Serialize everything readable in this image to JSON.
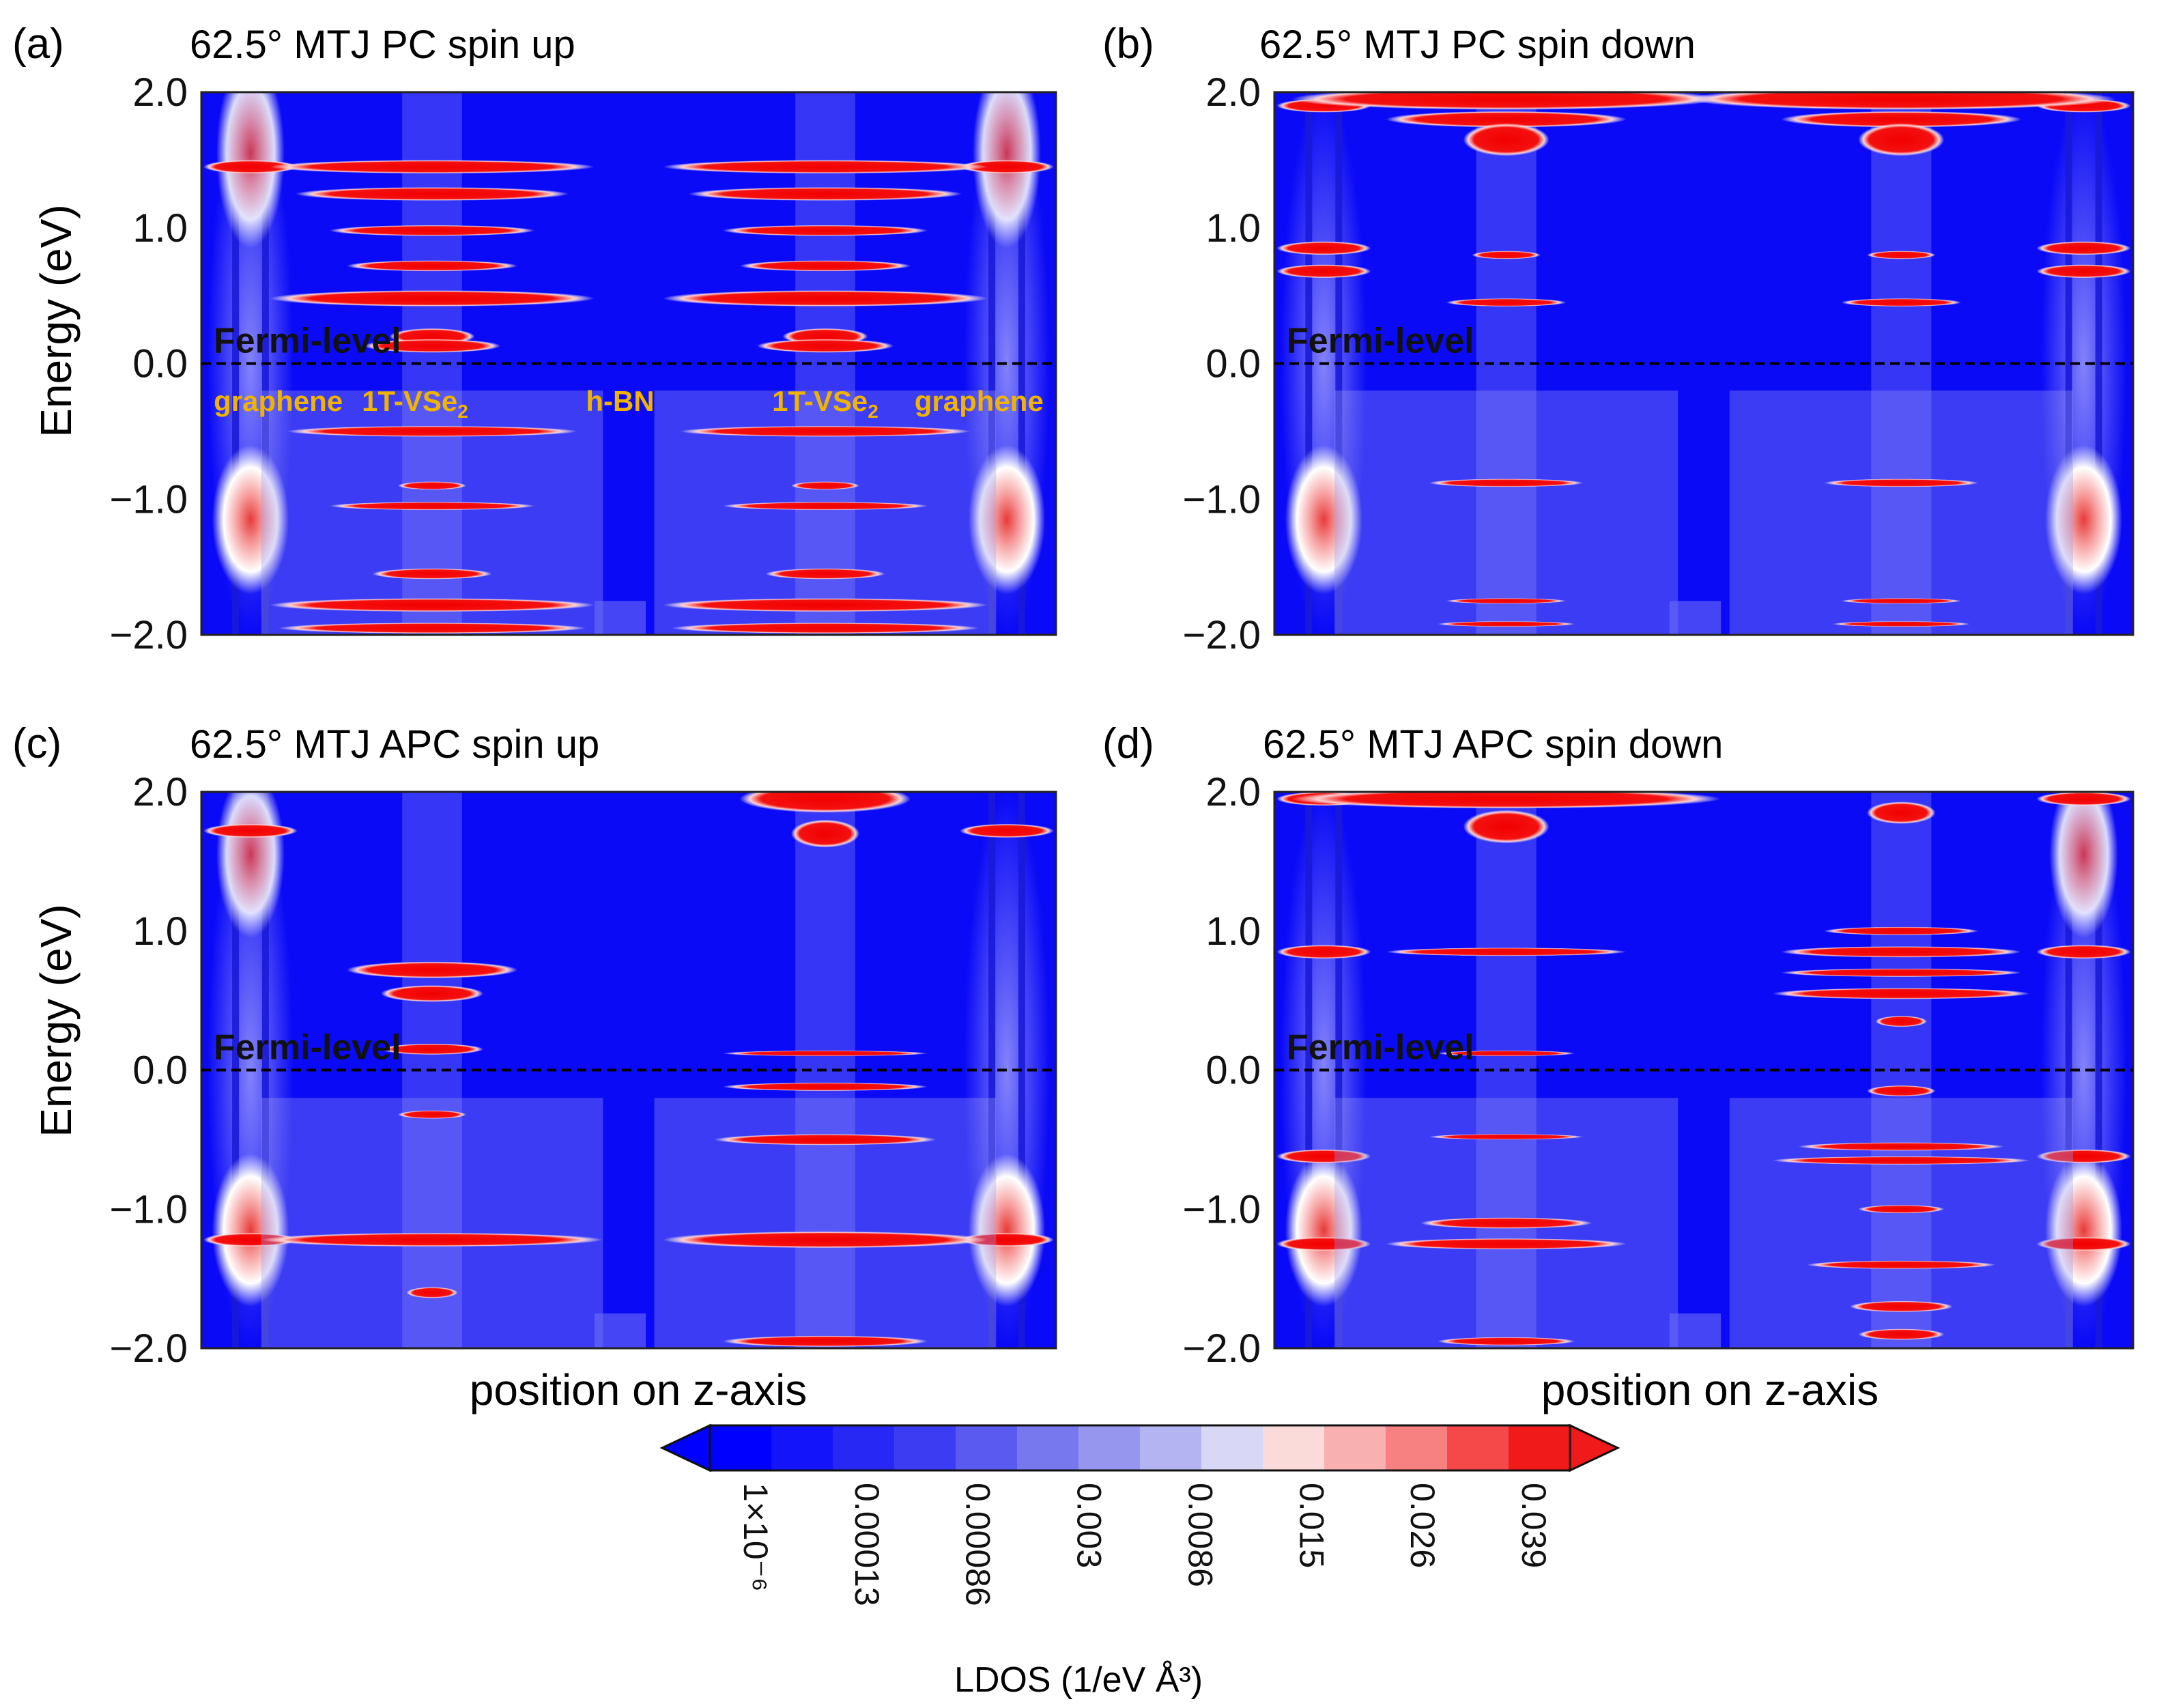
{
  "chart_data": {
    "type": "heatmap",
    "colorbar": {
      "label": "LDOS (1/eV Å³)",
      "ticks": [
        "1×10⁻⁶",
        "0.00013",
        "0.00086",
        "0.003",
        "0.0086",
        "0.015",
        "0.026",
        "0.039"
      ],
      "colors": [
        "#0000ff",
        "#1414fa",
        "#2828f5",
        "#3c3cf3",
        "#5a5af0",
        "#7878ee",
        "#9696ef",
        "#b4b4f2",
        "#d8d8f6",
        "#fbdada",
        "#f9b0b0",
        "#f78080",
        "#f54848",
        "#f01a1a"
      ],
      "extend": "both"
    },
    "fermi_label": "Fermi-level",
    "xlabel": "position on z-axis",
    "ylabel": "Energy (eV)",
    "ylim": [
      -2.0,
      2.0
    ],
    "yticks": [
      "2.0",
      "1.0",
      "0.0",
      "−1.0",
      "−2.0"
    ],
    "layer_labels": [
      "graphene",
      "1T-VSe",
      "h-BN",
      "1T-VSe",
      "graphene"
    ],
    "layer_subscript": "2",
    "panels": [
      {
        "id": "a",
        "label": "(a)",
        "title": "62.5° MTJ PC spin up",
        "vse2_left": [
          {
            "e": 1.45,
            "w": 0.19,
            "h": 0.05
          },
          {
            "e": 1.25,
            "w": 0.16,
            "h": 0.05
          },
          {
            "e": 0.98,
            "w": 0.12,
            "h": 0.04
          },
          {
            "e": 0.72,
            "w": 0.1,
            "h": 0.04
          },
          {
            "e": 0.48,
            "w": 0.19,
            "h": 0.06
          },
          {
            "e": 0.2,
            "w": 0.05,
            "h": 0.06
          },
          {
            "e": 0.13,
            "w": 0.08,
            "h": 0.05
          },
          {
            "e": -0.5,
            "w": 0.17,
            "h": 0.04
          },
          {
            "e": -0.9,
            "w": 0.04,
            "h": 0.03
          },
          {
            "e": -1.05,
            "w": 0.12,
            "h": 0.03
          },
          {
            "e": -1.55,
            "w": 0.07,
            "h": 0.04
          },
          {
            "e": -1.78,
            "w": 0.19,
            "h": 0.05
          },
          {
            "e": -1.95,
            "w": 0.18,
            "h": 0.04
          }
        ],
        "vse2_right": [
          {
            "e": 1.45,
            "w": 0.19,
            "h": 0.05
          },
          {
            "e": 1.25,
            "w": 0.16,
            "h": 0.05
          },
          {
            "e": 0.98,
            "w": 0.12,
            "h": 0.04
          },
          {
            "e": 0.72,
            "w": 0.1,
            "h": 0.04
          },
          {
            "e": 0.48,
            "w": 0.19,
            "h": 0.06
          },
          {
            "e": 0.2,
            "w": 0.05,
            "h": 0.06
          },
          {
            "e": 0.13,
            "w": 0.08,
            "h": 0.05
          },
          {
            "e": -0.5,
            "w": 0.17,
            "h": 0.04
          },
          {
            "e": -0.9,
            "w": 0.04,
            "h": 0.03
          },
          {
            "e": -1.05,
            "w": 0.12,
            "h": 0.03
          },
          {
            "e": -1.55,
            "w": 0.07,
            "h": 0.04
          },
          {
            "e": -1.78,
            "w": 0.19,
            "h": 0.05
          },
          {
            "e": -1.95,
            "w": 0.18,
            "h": 0.04
          }
        ],
        "left_plume": {
          "e0": 0.25,
          "e1": 0.75,
          "h": 0.7
        },
        "right_plume": {
          "e0": 0.25,
          "e1": 0.75,
          "h": 0.7
        },
        "graphene_bands": [
          1.45
        ],
        "show_layer_labels": true
      },
      {
        "id": "b",
        "label": "(b)",
        "title": "62.5° MTJ PC spin down",
        "vse2_left": [
          {
            "e": 1.95,
            "w": 0.25,
            "h": 0.08
          },
          {
            "e": 1.8,
            "w": 0.14,
            "h": 0.06
          },
          {
            "e": 1.65,
            "w": 0.05,
            "h": 0.12
          },
          {
            "e": 0.8,
            "w": 0.04,
            "h": 0.03
          },
          {
            "e": 0.45,
            "w": 0.07,
            "h": 0.03
          },
          {
            "e": -0.88,
            "w": 0.09,
            "h": 0.03
          },
          {
            "e": -1.75,
            "w": 0.07,
            "h": 0.02
          },
          {
            "e": -1.92,
            "w": 0.08,
            "h": 0.02
          }
        ],
        "vse2_right": [
          {
            "e": 1.95,
            "w": 0.25,
            "h": 0.08
          },
          {
            "e": 1.8,
            "w": 0.14,
            "h": 0.06
          },
          {
            "e": 1.65,
            "w": 0.05,
            "h": 0.12
          },
          {
            "e": 0.8,
            "w": 0.04,
            "h": 0.03
          },
          {
            "e": 0.45,
            "w": 0.07,
            "h": 0.03
          },
          {
            "e": -0.88,
            "w": 0.09,
            "h": 0.03
          },
          {
            "e": -1.75,
            "w": 0.07,
            "h": 0.02
          },
          {
            "e": -1.92,
            "w": 0.08,
            "h": 0.02
          }
        ],
        "left_plume": {
          "e0": 1.8,
          "e1": 2.0,
          "h": 0.3
        },
        "right_plume": {
          "e0": 1.8,
          "e1": 2.0,
          "h": 0.3
        },
        "graphene_bands": [
          1.9,
          0.85,
          0.68
        ],
        "show_layer_labels": false
      },
      {
        "id": "c",
        "label": "(c)",
        "title": "62.5° MTJ APC spin up",
        "vse2_left": [
          {
            "e": 0.72,
            "w": 0.1,
            "h": 0.06
          },
          {
            "e": 0.55,
            "w": 0.06,
            "h": 0.06
          },
          {
            "e": 0.15,
            "w": 0.06,
            "h": 0.04
          },
          {
            "e": -0.32,
            "w": 0.04,
            "h": 0.03
          },
          {
            "e": -1.22,
            "w": 0.2,
            "h": 0.05
          },
          {
            "e": -1.6,
            "w": 0.03,
            "h": 0.04
          }
        ],
        "vse2_right": [
          {
            "e": 1.95,
            "w": 0.1,
            "h": 0.1
          },
          {
            "e": 1.7,
            "w": 0.04,
            "h": 0.1
          },
          {
            "e": 0.12,
            "w": 0.12,
            "h": 0.02
          },
          {
            "e": -0.12,
            "w": 0.12,
            "h": 0.03
          },
          {
            "e": -0.5,
            "w": 0.13,
            "h": 0.04
          },
          {
            "e": -1.22,
            "w": 0.19,
            "h": 0.06
          },
          {
            "e": -1.95,
            "w": 0.12,
            "h": 0.04
          }
        ],
        "left_plume": {
          "e0": 0.25,
          "e1": 0.75,
          "h": 0.6
        },
        "right_plume": {
          "e0": 1.8,
          "e1": 2.0,
          "h": 0.3
        },
        "graphene_bands": [
          -1.22,
          1.72
        ],
        "show_layer_labels": false
      },
      {
        "id": "d",
        "label": "(d)",
        "title": "62.5° MTJ APC spin down",
        "vse2_left": [
          {
            "e": 1.95,
            "w": 0.25,
            "h": 0.07
          },
          {
            "e": 1.75,
            "w": 0.05,
            "h": 0.12
          },
          {
            "e": 0.85,
            "w": 0.14,
            "h": 0.03
          },
          {
            "e": 0.12,
            "w": 0.08,
            "h": 0.02
          },
          {
            "e": -0.48,
            "w": 0.09,
            "h": 0.02
          },
          {
            "e": -1.1,
            "w": 0.1,
            "h": 0.04
          },
          {
            "e": -1.25,
            "w": 0.14,
            "h": 0.04
          },
          {
            "e": -1.95,
            "w": 0.08,
            "h": 0.03
          }
        ],
        "vse2_right": [
          {
            "e": 1.85,
            "w": 0.04,
            "h": 0.08
          },
          {
            "e": 1.0,
            "w": 0.09,
            "h": 0.03
          },
          {
            "e": 0.85,
            "w": 0.14,
            "h": 0.04
          },
          {
            "e": 0.7,
            "w": 0.14,
            "h": 0.03
          },
          {
            "e": 0.55,
            "w": 0.15,
            "h": 0.04
          },
          {
            "e": 0.35,
            "w": 0.03,
            "h": 0.04
          },
          {
            "e": -0.15,
            "w": 0.04,
            "h": 0.04
          },
          {
            "e": -0.55,
            "w": 0.12,
            "h": 0.03
          },
          {
            "e": -0.65,
            "w": 0.15,
            "h": 0.03
          },
          {
            "e": -1.0,
            "w": 0.05,
            "h": 0.03
          },
          {
            "e": -1.4,
            "w": 0.11,
            "h": 0.03
          },
          {
            "e": -1.7,
            "w": 0.06,
            "h": 0.04
          },
          {
            "e": -1.9,
            "w": 0.05,
            "h": 0.04
          }
        ],
        "left_plume": {
          "e0": 1.8,
          "e1": 2.0,
          "h": 0.3
        },
        "right_plume": {
          "e0": 0.25,
          "e1": 0.75,
          "h": 0.6
        },
        "graphene_bands": [
          1.95,
          0.85,
          -1.25,
          -0.62
        ],
        "show_layer_labels": false
      }
    ]
  }
}
